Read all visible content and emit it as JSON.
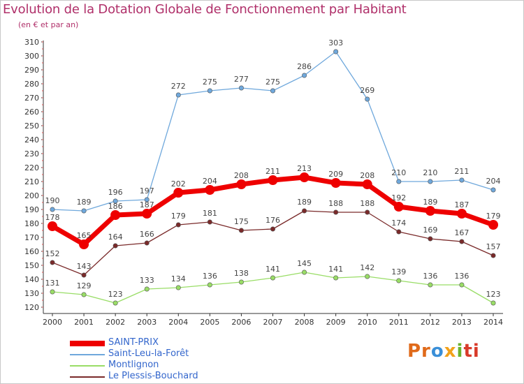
{
  "title": "Evolution de la Dotation Globale de Fonctionnement par Habitant",
  "subtitle": "(en € et par an)",
  "chart_data": {
    "type": "line",
    "x": [
      2000,
      2001,
      2002,
      2003,
      2004,
      2005,
      2006,
      2007,
      2008,
      2009,
      2010,
      2011,
      2012,
      2013,
      2014
    ],
    "ylim": [
      120,
      310
    ],
    "yticks": [
      120,
      130,
      140,
      150,
      160,
      170,
      180,
      190,
      200,
      210,
      220,
      230,
      240,
      250,
      260,
      270,
      280,
      290,
      300,
      310
    ],
    "grid": false,
    "series": [
      {
        "name": "SAINT-PRIX",
        "color": "#ee0000",
        "emphasis": true,
        "values": [
          178,
          165,
          186,
          187,
          202,
          204,
          208,
          211,
          213,
          209,
          208,
          192,
          189,
          187,
          179
        ]
      },
      {
        "name": "Saint-Leu-la-Forêt",
        "color": "#6fa8dc",
        "values": [
          190,
          189,
          196,
          197,
          272,
          275,
          277,
          275,
          286,
          303,
          269,
          210,
          210,
          211,
          204
        ]
      },
      {
        "name": "Montlignon",
        "color": "#99dd66",
        "values": [
          131,
          129,
          123,
          133,
          134,
          136,
          138,
          141,
          145,
          141,
          142,
          139,
          136,
          136,
          123
        ]
      },
      {
        "name": "Le Plessis-Bouchard",
        "color": "#7a2a2a",
        "values": [
          152,
          143,
          164,
          166,
          179,
          181,
          175,
          176,
          189,
          188,
          188,
          174,
          169,
          167,
          157
        ]
      }
    ],
    "legend_placement": "bottom-left"
  },
  "logo": {
    "parts": [
      "Pr",
      "o",
      "x",
      "i",
      "ti"
    ]
  }
}
